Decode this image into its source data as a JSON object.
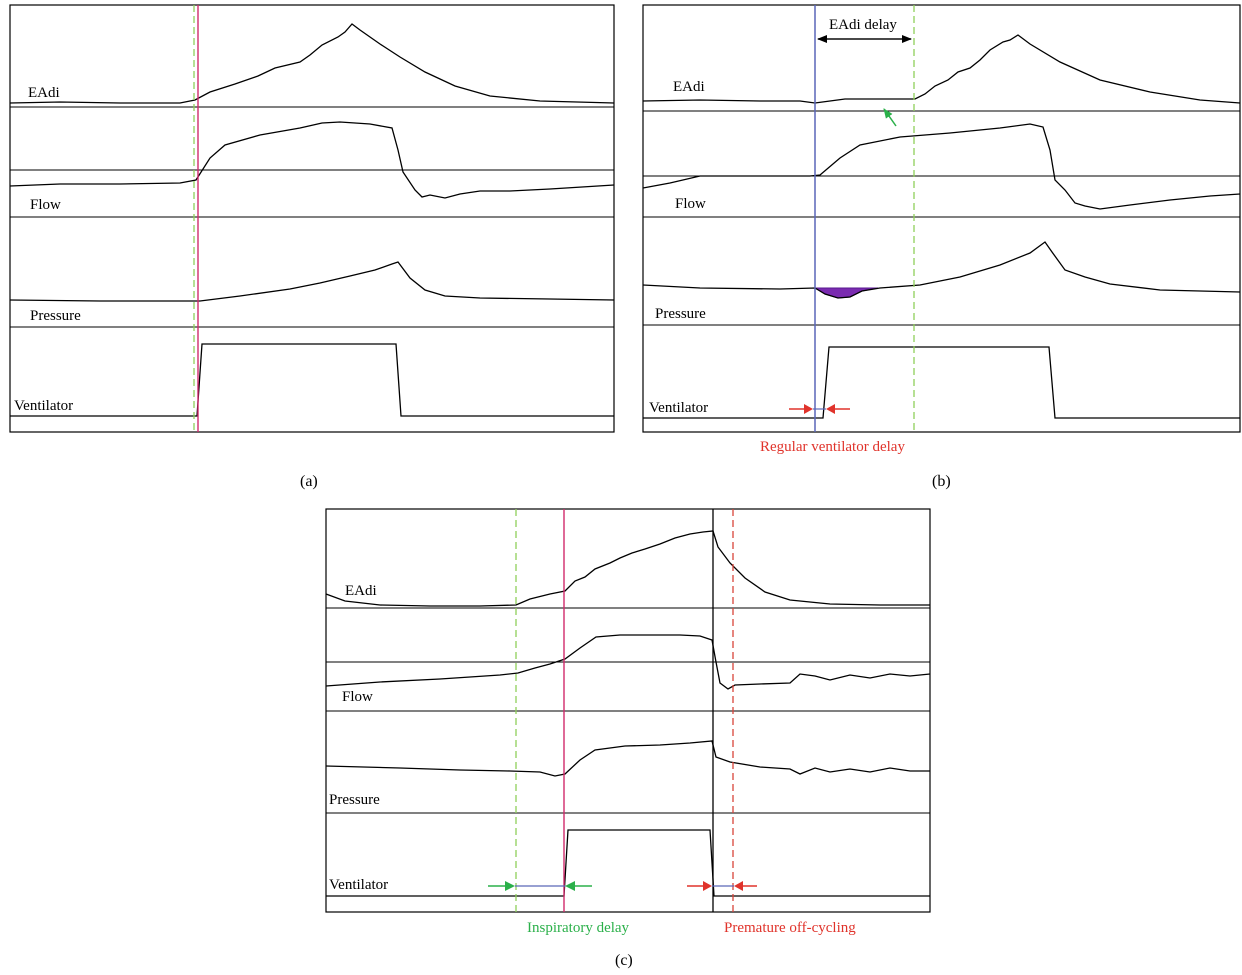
{
  "panels": {
    "a": {
      "caption": "(a)",
      "channels": [
        "EAdi",
        "Flow",
        "Pressure",
        "Ventilator"
      ]
    },
    "b": {
      "caption": "(b)",
      "channels": [
        "EAdi",
        "Flow",
        "Pressure",
        "Ventilator"
      ],
      "annotations": {
        "eadi_delay": "EAdi delay",
        "ventilator_delay": "Regular ventilator delay"
      }
    },
    "c": {
      "caption": "(c)",
      "channels": [
        "EAdi",
        "Flow",
        "Pressure",
        "Ventilator"
      ],
      "annotations": {
        "inspiratory_delay": "Inspiratory delay",
        "premature_off_cycling": "Premature off-cycling"
      }
    }
  },
  "colors": {
    "trace": "#000000",
    "magenta_line": "#d12a6b",
    "blue_line": "#5a67b8",
    "green_dash": "#8fcf5a",
    "red_dash": "#d8443a",
    "red_arrow": "#e0332b",
    "green_arrow": "#2bb04a",
    "purple_fill": "#7a2bb0"
  }
}
